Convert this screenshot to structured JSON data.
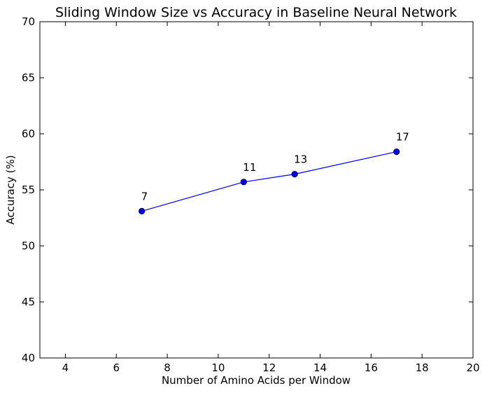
{
  "chart_data": {
    "type": "line",
    "title": "Sliding Window Size vs Accuracy in Baseline Neural Network",
    "xlabel": "Number of Amino Acids per Window",
    "ylabel": "Accuracy (%)",
    "xlim": [
      3,
      20
    ],
    "ylim": [
      40,
      70
    ],
    "xticks": [
      4,
      6,
      8,
      10,
      12,
      14,
      16,
      18,
      20
    ],
    "yticks": [
      40,
      45,
      50,
      55,
      60,
      65,
      70
    ],
    "grid": false,
    "series": [
      {
        "x": [
          7,
          11,
          13,
          17
        ],
        "y": [
          53.1,
          55.7,
          56.4,
          58.4
        ],
        "point_labels": [
          "7",
          "11",
          "13",
          "17"
        ],
        "color": "#0000ff",
        "marker": "circle"
      }
    ]
  }
}
